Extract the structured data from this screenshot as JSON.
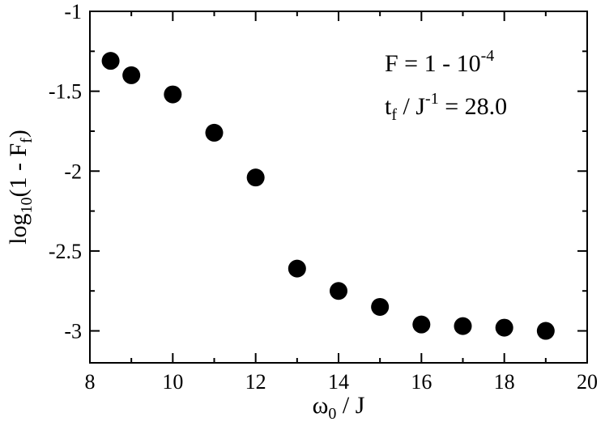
{
  "chart_data": {
    "type": "scatter",
    "x": [
      8.5,
      9,
      10,
      11,
      12,
      13,
      14,
      15,
      16,
      17,
      18,
      19
    ],
    "y": [
      -1.31,
      -1.4,
      -1.52,
      -1.76,
      -2.04,
      -2.61,
      -2.75,
      -2.85,
      -2.96,
      -2.97,
      -2.98,
      -3.0
    ],
    "xlim": [
      8,
      20
    ],
    "ylim": [
      -3.2,
      -1.0
    ],
    "xticks": [
      8,
      10,
      12,
      14,
      16,
      18,
      20
    ],
    "yticks": [
      -1,
      -1.5,
      -2,
      -2.5,
      -3
    ],
    "xtick_labels": [
      "8",
      "10",
      "12",
      "14",
      "16",
      "18",
      "20"
    ],
    "ytick_labels": [
      "-1",
      "-1.5",
      "-2",
      "-2.5",
      "-3"
    ],
    "xlabel": {
      "main": "ω",
      "sub": "0",
      "rest": " / J"
    },
    "ylabel": {
      "pre": "log",
      "sub": "10",
      "mid": "(1 - F",
      "sub2": "f",
      "post": ")"
    },
    "annotations": [
      {
        "pre": "F = 1 - 10",
        "sup": "-4"
      },
      {
        "pre": "t",
        "sub": "f",
        "mid": " / J",
        "sup": "-1",
        "post": " = 28.0"
      }
    ],
    "grid": false,
    "marker_color": "#000000"
  }
}
